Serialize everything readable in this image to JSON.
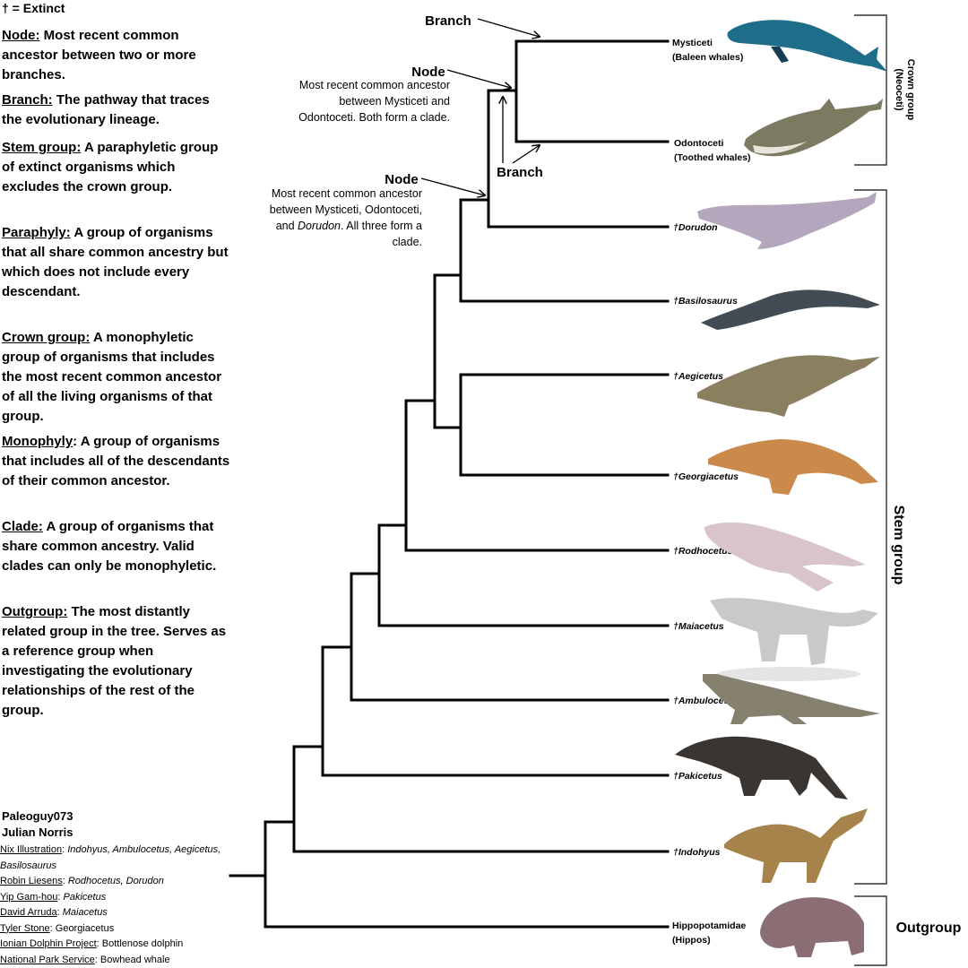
{
  "legend": {
    "extinct": "† = Extinct"
  },
  "definitions": [
    {
      "term": "Node:",
      "text": " Most recent common ancestor between two or more branches."
    },
    {
      "term": "Branch:",
      "text": " The pathway that traces the evolutionary lineage."
    },
    {
      "term": "Stem group:",
      "text": " A paraphyletic group of extinct organisms which excludes the crown group."
    },
    {
      "term": "Paraphyly:",
      "text": " A group of organisms that all share common ancestry but which does not include every descendant."
    },
    {
      "term": "Crown group:",
      "text": " A monophyletic group of organisms that includes the most recent common ancestor of all the living organisms of that group."
    },
    {
      "term": "Monophyly",
      "text": ": A group of organisms that includes all of the descendants of their common ancestor."
    },
    {
      "term": "Clade:",
      "text": " A group of organisms that share common ancestry. Valid clades can only be monophyletic."
    },
    {
      "term": "Outgroup:",
      "text": " The most distantly related group in the tree. Serves as a reference group when investigating the evolutionary relationships of the rest of the group."
    }
  ],
  "authors": [
    "Paleoguy073",
    "Julian Norris"
  ],
  "credits": [
    {
      "who": "Nix Illustration",
      "sep": ": ",
      "what": "Indohyus, Ambulocetus, Aegicetus, Basilosaurus",
      "italic": true
    },
    {
      "who": "Robin Liesens",
      "sep": ": ",
      "what": "Rodhocetus, Dorudon",
      "italic": true
    },
    {
      "who": "Yip Gam-hou",
      "sep": ": ",
      "what": "Pakicetus",
      "italic": true
    },
    {
      "who": "David Arruda",
      "sep": ": ",
      "what": "Maiacetus",
      "italic": true
    },
    {
      "who": "Tyler Stone",
      "sep": ": ",
      "what": "Georgiacetus",
      "italic": false
    },
    {
      "who": "Ionian Dolphin Project",
      "sep": ": ",
      "what": "Bottlenose dolphin",
      "italic": false
    },
    {
      "who": "National Park Service",
      "sep": ": ",
      "what": "Bowhead whale",
      "italic": false
    }
  ],
  "annotations": {
    "branch_top": "Branch",
    "node1_label": "Node",
    "node1_text": [
      "Most recent common ancestor",
      "between Mysticeti and",
      "Odontoceti. Both form a clade."
    ],
    "branch_mid": "Branch",
    "node2_label": "Node",
    "node2_line1": "Most recent common ancestor",
    "node2_line2": "between Mysticeti, Odontoceti,",
    "node2_line3_pre": "and ",
    "node2_line3_it": "Dorudon",
    "node2_line3_post": ". All three form a",
    "node2_line4": "clade."
  },
  "taxa": [
    {
      "name": "Mysticeti",
      "sub": "(Baleen whales)",
      "extinct": false
    },
    {
      "name": "Odontoceti",
      "sub": "(Toothed whales)",
      "extinct": false
    },
    {
      "name": "†Dorudon",
      "extinct": true
    },
    {
      "name": "†Basilosaurus",
      "extinct": true
    },
    {
      "name": "†Aegicetus",
      "extinct": true
    },
    {
      "name": "†Georgiacetus",
      "extinct": true
    },
    {
      "name": "†Rodhocetus",
      "extinct": true
    },
    {
      "name": "†Maiacetus",
      "extinct": true
    },
    {
      "name": "†Ambulocetus",
      "extinct": true
    },
    {
      "name": "†Pakicetus",
      "extinct": true
    },
    {
      "name": "†Indohyus",
      "extinct": true
    },
    {
      "name": "Hippopotamidae",
      "sub": "(Hippos)",
      "extinct": false
    }
  ],
  "groups": {
    "crown": [
      "Crown group",
      "(Neoceti)"
    ],
    "stem": "Stem group",
    "outgroup": "Outgroup"
  },
  "colors": {
    "line": "#000000",
    "bracket": "#333333",
    "whale_blue": "#1e6e8a",
    "dolphin_gray": "#7d7a62",
    "dorudon": "#b4a6bc",
    "basilosaurus": "#434c55",
    "aegicetus": "#8a8060",
    "georgiacetus": "#c98a4c",
    "rodhocetus": "#d9c3cc",
    "maiacetus": "#c9c9c9",
    "ambulocetus": "#86816e",
    "pakicetus": "#3a3530",
    "indohyus": "#a5834a",
    "hippo": "#8a6e74"
  }
}
